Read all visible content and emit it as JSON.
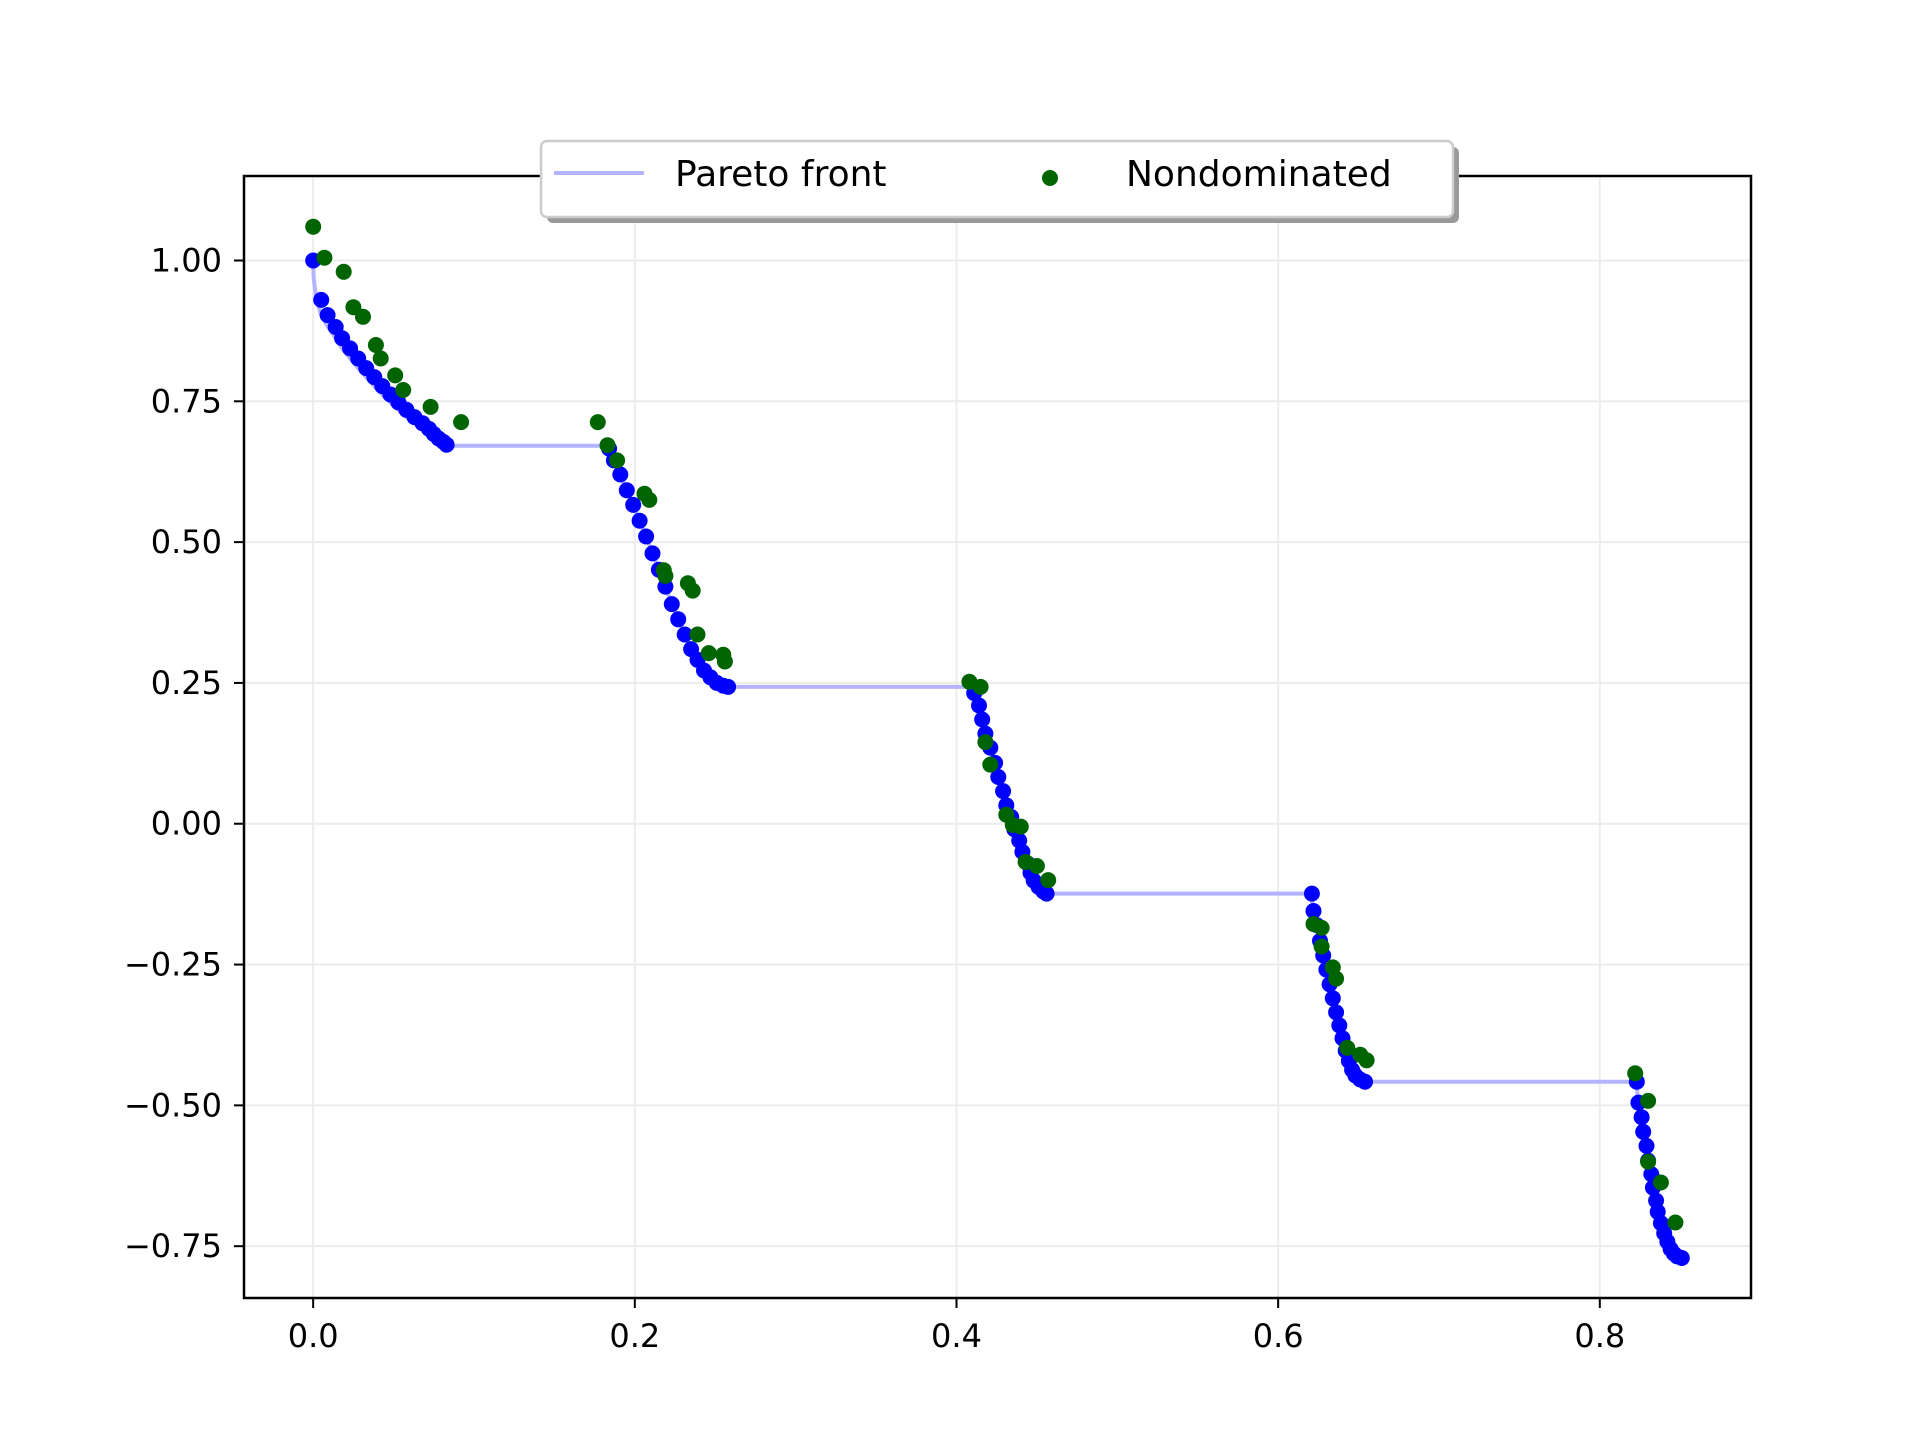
{
  "chart_data": {
    "type": "scatter",
    "title": "",
    "xlabel": "",
    "ylabel": "",
    "xlim": [
      -0.043,
      0.894
    ],
    "ylim": [
      -0.842,
      1.15
    ],
    "grid": true,
    "legend_position": "top-center",
    "x_ticks": [
      {
        "value": 0.0,
        "label": "0.0"
      },
      {
        "value": 0.2,
        "label": "0.2"
      },
      {
        "value": 0.4,
        "label": "0.4"
      },
      {
        "value": 0.6,
        "label": "0.6"
      },
      {
        "value": 0.8,
        "label": "0.8"
      }
    ],
    "y_ticks": [
      {
        "value": 1.0,
        "label": "1.00"
      },
      {
        "value": 0.75,
        "label": "0.75"
      },
      {
        "value": 0.5,
        "label": "0.50"
      },
      {
        "value": 0.25,
        "label": "0.25"
      },
      {
        "value": 0.0,
        "label": "0.00"
      },
      {
        "value": -0.25,
        "label": "−0.25"
      },
      {
        "value": -0.5,
        "label": "−0.50"
      },
      {
        "value": -0.75,
        "label": "−0.75"
      }
    ],
    "series": [
      {
        "name": "Pareto front",
        "kind": "line",
        "color": "#b3b3ff",
        "points": [
          [
            0.0,
            1.0
          ],
          [
            0.0003,
            0.97
          ],
          [
            0.002,
            0.93
          ],
          [
            0.005,
            0.903
          ],
          [
            0.009,
            0.883
          ],
          [
            0.014,
            0.862
          ],
          [
            0.018,
            0.844
          ],
          [
            0.023,
            0.826
          ],
          [
            0.028,
            0.809
          ],
          [
            0.033,
            0.793
          ],
          [
            0.038,
            0.777
          ],
          [
            0.043,
            0.762
          ],
          [
            0.048,
            0.748
          ],
          [
            0.053,
            0.735
          ],
          [
            0.058,
            0.722
          ],
          [
            0.063,
            0.711
          ],
          [
            0.068,
            0.701
          ],
          [
            0.072,
            0.692
          ],
          [
            0.076,
            0.684
          ],
          [
            0.079,
            0.678
          ],
          [
            0.082,
            0.673
          ],
          [
            0.083,
            0.671
          ],
          [
            0.182,
            0.671
          ],
          [
            0.184,
            0.666
          ],
          [
            0.187,
            0.645
          ],
          [
            0.191,
            0.62
          ],
          [
            0.195,
            0.592
          ],
          [
            0.199,
            0.566
          ],
          [
            0.203,
            0.538
          ],
          [
            0.207,
            0.51
          ],
          [
            0.211,
            0.48
          ],
          [
            0.215,
            0.451
          ],
          [
            0.219,
            0.421
          ],
          [
            0.223,
            0.39
          ],
          [
            0.227,
            0.363
          ],
          [
            0.231,
            0.336
          ],
          [
            0.235,
            0.31
          ],
          [
            0.239,
            0.291
          ],
          [
            0.243,
            0.272
          ],
          [
            0.247,
            0.26
          ],
          [
            0.251,
            0.25
          ],
          [
            0.255,
            0.245
          ],
          [
            0.258,
            0.243
          ],
          [
            0.411,
            0.243
          ],
          [
            0.412,
            0.232
          ],
          [
            0.414,
            0.21
          ],
          [
            0.416,
            0.185
          ],
          [
            0.418,
            0.16
          ],
          [
            0.421,
            0.135
          ],
          [
            0.424,
            0.108
          ],
          [
            0.426,
            0.083
          ],
          [
            0.429,
            0.058
          ],
          [
            0.431,
            0.033
          ],
          [
            0.434,
            0.012
          ],
          [
            0.436,
            -0.01
          ],
          [
            0.439,
            -0.03
          ],
          [
            0.441,
            -0.05
          ],
          [
            0.444,
            -0.07
          ],
          [
            0.446,
            -0.087
          ],
          [
            0.448,
            -0.101
          ],
          [
            0.451,
            -0.112
          ],
          [
            0.454,
            -0.12
          ],
          [
            0.456,
            -0.124
          ],
          [
            0.62,
            -0.124
          ],
          [
            0.621,
            -0.137
          ],
          [
            0.623,
            -0.16
          ],
          [
            0.624,
            -0.184
          ],
          [
            0.626,
            -0.208
          ],
          [
            0.628,
            -0.234
          ],
          [
            0.63,
            -0.259
          ],
          [
            0.632,
            -0.285
          ],
          [
            0.634,
            -0.31
          ],
          [
            0.636,
            -0.335
          ],
          [
            0.638,
            -0.358
          ],
          [
            0.64,
            -0.381
          ],
          [
            0.642,
            -0.403
          ],
          [
            0.644,
            -0.421
          ],
          [
            0.646,
            -0.437
          ],
          [
            0.648,
            -0.447
          ],
          [
            0.651,
            -0.454
          ],
          [
            0.654,
            -0.458
          ],
          [
            0.822,
            -0.458
          ],
          [
            0.823,
            -0.468
          ],
          [
            0.824,
            -0.495
          ],
          [
            0.826,
            -0.521
          ],
          [
            0.827,
            -0.547
          ],
          [
            0.829,
            -0.572
          ],
          [
            0.83,
            -0.598
          ],
          [
            0.832,
            -0.622
          ],
          [
            0.833,
            -0.646
          ],
          [
            0.835,
            -0.669
          ],
          [
            0.836,
            -0.689
          ],
          [
            0.838,
            -0.709
          ],
          [
            0.84,
            -0.727
          ],
          [
            0.842,
            -0.742
          ],
          [
            0.844,
            -0.755
          ],
          [
            0.846,
            -0.763
          ],
          [
            0.848,
            -0.768
          ],
          [
            0.851,
            -0.771
          ]
        ]
      },
      {
        "name": "",
        "kind": "scatter",
        "color": "#0000ff",
        "points": [
          [
            0.0,
            1.0
          ],
          [
            0.005,
            0.93
          ],
          [
            0.009,
            0.903
          ],
          [
            0.014,
            0.882
          ],
          [
            0.018,
            0.862
          ],
          [
            0.023,
            0.844
          ],
          [
            0.028,
            0.826
          ],
          [
            0.033,
            0.809
          ],
          [
            0.038,
            0.793
          ],
          [
            0.043,
            0.777
          ],
          [
            0.048,
            0.762
          ],
          [
            0.053,
            0.748
          ],
          [
            0.058,
            0.735
          ],
          [
            0.063,
            0.722
          ],
          [
            0.068,
            0.711
          ],
          [
            0.072,
            0.701
          ],
          [
            0.075,
            0.692
          ],
          [
            0.078,
            0.684
          ],
          [
            0.081,
            0.678
          ],
          [
            0.083,
            0.673
          ],
          [
            0.184,
            0.666
          ],
          [
            0.187,
            0.645
          ],
          [
            0.191,
            0.62
          ],
          [
            0.195,
            0.592
          ],
          [
            0.199,
            0.566
          ],
          [
            0.203,
            0.538
          ],
          [
            0.207,
            0.51
          ],
          [
            0.211,
            0.48
          ],
          [
            0.215,
            0.451
          ],
          [
            0.219,
            0.421
          ],
          [
            0.223,
            0.39
          ],
          [
            0.227,
            0.363
          ],
          [
            0.231,
            0.336
          ],
          [
            0.235,
            0.31
          ],
          [
            0.239,
            0.291
          ],
          [
            0.243,
            0.272
          ],
          [
            0.247,
            0.26
          ],
          [
            0.251,
            0.25
          ],
          [
            0.255,
            0.245
          ],
          [
            0.258,
            0.243
          ],
          [
            0.411,
            0.232
          ],
          [
            0.414,
            0.21
          ],
          [
            0.416,
            0.185
          ],
          [
            0.418,
            0.16
          ],
          [
            0.421,
            0.135
          ],
          [
            0.424,
            0.108
          ],
          [
            0.426,
            0.083
          ],
          [
            0.429,
            0.058
          ],
          [
            0.431,
            0.033
          ],
          [
            0.434,
            0.012
          ],
          [
            0.436,
            -0.01
          ],
          [
            0.439,
            -0.03
          ],
          [
            0.441,
            -0.05
          ],
          [
            0.444,
            -0.07
          ],
          [
            0.446,
            -0.087
          ],
          [
            0.448,
            -0.101
          ],
          [
            0.451,
            -0.112
          ],
          [
            0.454,
            -0.12
          ],
          [
            0.456,
            -0.124
          ],
          [
            0.621,
            -0.124
          ],
          [
            0.622,
            -0.155
          ],
          [
            0.624,
            -0.18
          ],
          [
            0.626,
            -0.208
          ],
          [
            0.628,
            -0.234
          ],
          [
            0.63,
            -0.259
          ],
          [
            0.632,
            -0.285
          ],
          [
            0.634,
            -0.31
          ],
          [
            0.636,
            -0.335
          ],
          [
            0.638,
            -0.358
          ],
          [
            0.64,
            -0.381
          ],
          [
            0.642,
            -0.403
          ],
          [
            0.644,
            -0.421
          ],
          [
            0.646,
            -0.437
          ],
          [
            0.648,
            -0.447
          ],
          [
            0.651,
            -0.454
          ],
          [
            0.654,
            -0.458
          ],
          [
            0.823,
            -0.458
          ],
          [
            0.824,
            -0.495
          ],
          [
            0.826,
            -0.521
          ],
          [
            0.827,
            -0.547
          ],
          [
            0.829,
            -0.572
          ],
          [
            0.83,
            -0.598
          ],
          [
            0.832,
            -0.622
          ],
          [
            0.833,
            -0.646
          ],
          [
            0.835,
            -0.669
          ],
          [
            0.836,
            -0.689
          ],
          [
            0.838,
            -0.709
          ],
          [
            0.84,
            -0.727
          ],
          [
            0.842,
            -0.742
          ],
          [
            0.844,
            -0.755
          ],
          [
            0.846,
            -0.763
          ],
          [
            0.848,
            -0.768
          ],
          [
            0.851,
            -0.771
          ]
        ]
      },
      {
        "name": "Nondominated",
        "kind": "scatter",
        "color": "#006400",
        "points": [
          [
            0.0,
            1.06
          ],
          [
            0.007,
            1.005
          ],
          [
            0.019,
            0.98
          ],
          [
            0.025,
            0.917
          ],
          [
            0.031,
            0.9
          ],
          [
            0.039,
            0.85
          ],
          [
            0.042,
            0.826
          ],
          [
            0.051,
            0.796
          ],
          [
            0.056,
            0.77
          ],
          [
            0.073,
            0.74
          ],
          [
            0.092,
            0.713
          ],
          [
            0.177,
            0.713
          ],
          [
            0.183,
            0.672
          ],
          [
            0.189,
            0.645
          ],
          [
            0.206,
            0.586
          ],
          [
            0.209,
            0.575
          ],
          [
            0.218,
            0.45
          ],
          [
            0.219,
            0.44
          ],
          [
            0.233,
            0.427
          ],
          [
            0.236,
            0.414
          ],
          [
            0.239,
            0.336
          ],
          [
            0.246,
            0.303
          ],
          [
            0.255,
            0.3
          ],
          [
            0.256,
            0.288
          ],
          [
            0.408,
            0.252
          ],
          [
            0.415,
            0.243
          ],
          [
            0.418,
            0.145
          ],
          [
            0.421,
            0.105
          ],
          [
            0.431,
            0.016
          ],
          [
            0.435,
            -0.002
          ],
          [
            0.44,
            -0.005
          ],
          [
            0.443,
            -0.068
          ],
          [
            0.45,
            -0.075
          ],
          [
            0.457,
            -0.1
          ],
          [
            0.622,
            -0.178
          ],
          [
            0.627,
            -0.185
          ],
          [
            0.627,
            -0.218
          ],
          [
            0.634,
            -0.255
          ],
          [
            0.636,
            -0.275
          ],
          [
            0.643,
            -0.398
          ],
          [
            0.651,
            -0.41
          ],
          [
            0.655,
            -0.42
          ],
          [
            0.822,
            -0.443
          ],
          [
            0.83,
            -0.492
          ],
          [
            0.83,
            -0.6
          ],
          [
            0.838,
            -0.637
          ],
          [
            0.847,
            -0.708
          ]
        ]
      }
    ]
  }
}
